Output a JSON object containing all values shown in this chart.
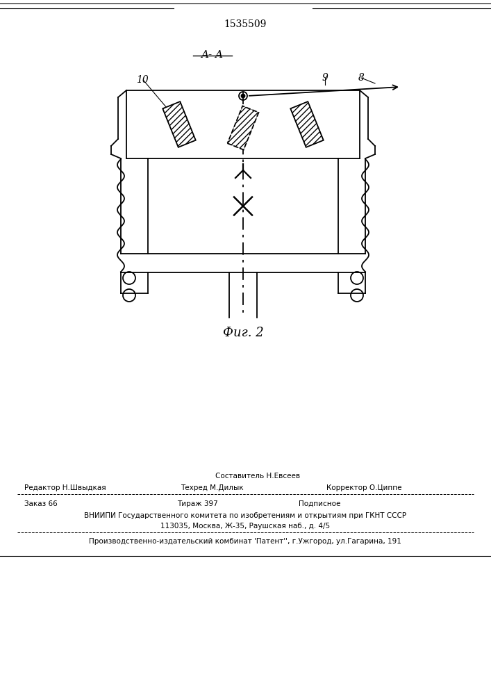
{
  "patent_number": "1535509",
  "section_label": "A- A",
  "fig_label": "Фиг. 2",
  "footer": {
    "line1_center": "Составитель Н.Евсеев",
    "line1_left": "Редактор Н.Швыдкая",
    "line2_center": "Техред М.Дилык",
    "line1_right": "Корректор О.Циппе",
    "order": "Заказ 66",
    "tirazh": "Тираж 397",
    "podpisnoe": "Подписное",
    "vniiipi": "ВНИИПИ Государственного комитета по изобретениям и открытиям при ГКНТ СССР",
    "address": "113035, Москва, Ж-35, Раушская наб., д. 4/5",
    "proizvod": "Производственно-издательский комбинат 'Патент'', г.Ужгород, ул.Гагарина, 191"
  },
  "bg_color": "#ffffff",
  "line_color": "#000000"
}
